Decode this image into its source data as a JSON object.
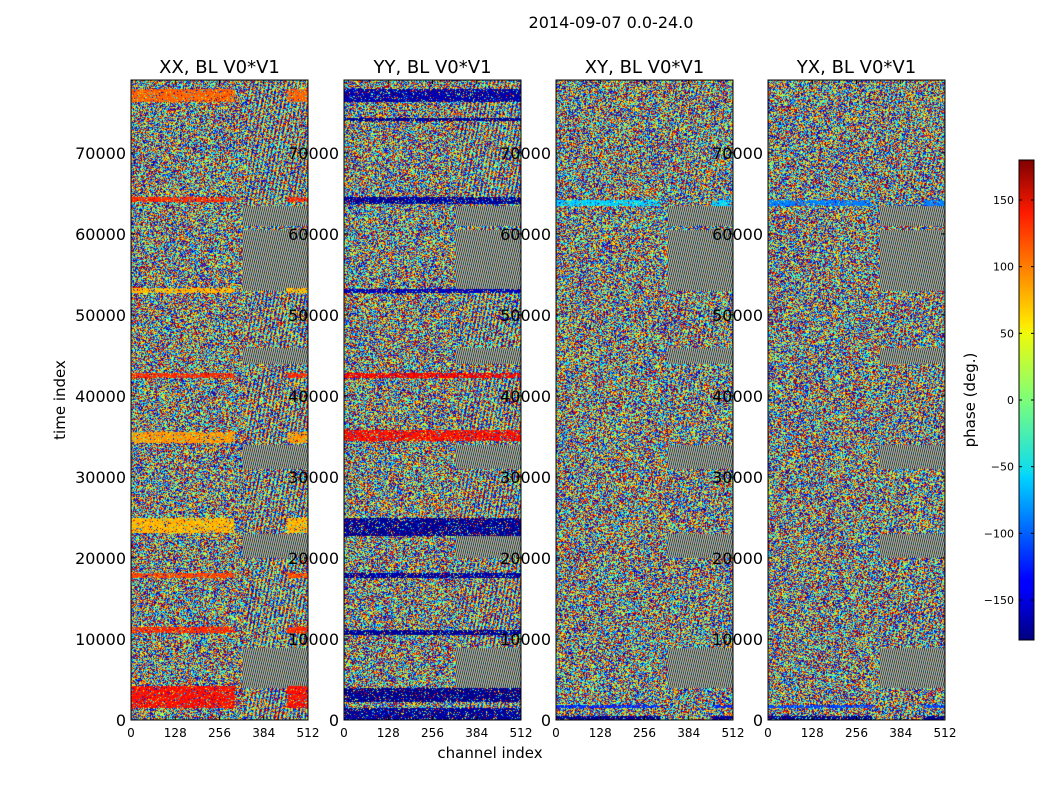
{
  "chart_data": {
    "type": "heatmap",
    "title": "2014-09-07 0.0-24.0",
    "xlabel": "channel index",
    "ylabel": "time index",
    "xlim": [
      0,
      512
    ],
    "ylim": [
      0,
      79000
    ],
    "x_ticks": [
      0,
      128,
      256,
      384,
      512
    ],
    "y_ticks": [
      0,
      10000,
      20000,
      30000,
      40000,
      50000,
      60000,
      70000
    ],
    "panels": [
      {
        "title": "XX, BL V0*V1",
        "product": "XX",
        "bands": [
          [
            1500,
            4200,
            130
          ],
          [
            10800,
            11600,
            120
          ],
          [
            17600,
            18200,
            110
          ],
          [
            23200,
            25000,
            70
          ],
          [
            34200,
            35600,
            80
          ],
          [
            42300,
            42900,
            120
          ],
          [
            52800,
            53400,
            70
          ],
          [
            64000,
            64600,
            120
          ],
          [
            76300,
            77900,
            100
          ]
        ]
      },
      {
        "title": "YY, BL V0*V1",
        "product": "YY",
        "bands": [
          [
            0,
            1500,
            -170
          ],
          [
            2300,
            4000,
            -175
          ],
          [
            10600,
            11200,
            -170
          ],
          [
            17600,
            18200,
            -168
          ],
          [
            22800,
            25000,
            -172
          ],
          [
            34500,
            35800,
            130
          ],
          [
            42300,
            42900,
            135
          ],
          [
            52800,
            53300,
            -160
          ],
          [
            63800,
            64600,
            -170
          ],
          [
            74000,
            74400,
            -170
          ],
          [
            76300,
            77900,
            -165
          ]
        ]
      },
      {
        "title": "XY, BL V0*V1",
        "product": "XY",
        "bands": [
          [
            0,
            500,
            -175
          ],
          [
            1500,
            1900,
            -120
          ],
          [
            63500,
            64200,
            -60
          ]
        ]
      },
      {
        "title": "YX, BL V0*V1",
        "product": "YX",
        "bands": [
          [
            0,
            500,
            -175
          ],
          [
            1500,
            1900,
            -110
          ],
          [
            63500,
            64200,
            -90
          ]
        ]
      }
    ],
    "colorbar": {
      "label": "phase (deg.)",
      "range": [
        -180,
        180
      ],
      "ticks": [
        150,
        100,
        50,
        0,
        -50,
        -100,
        -150
      ],
      "tick_labels": [
        "150",
        "100",
        "50",
        "0",
        "−50",
        "−100",
        "−150"
      ],
      "colormap": "jet"
    }
  }
}
